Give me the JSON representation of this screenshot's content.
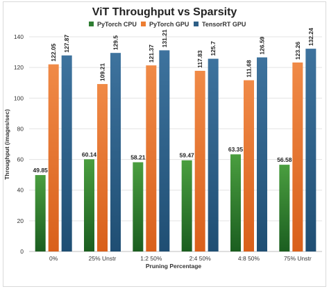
{
  "chart_data": {
    "type": "bar",
    "title": "ViT Throughput vs Sparsity",
    "xlabel": "Pruning Percentage",
    "ylabel": "Throughput (images/sec)",
    "ylim": [
      0,
      140
    ],
    "yticks": [
      0,
      20,
      40,
      60,
      80,
      100,
      120,
      140
    ],
    "grid": "horizontal",
    "legend_position": "top",
    "categories": [
      "0%",
      "25% Unstr",
      "1:2 50%",
      "2:4 50%",
      "4:8 50%",
      "75% Unstr"
    ],
    "series": [
      {
        "name": "PyTorch CPU",
        "color": "#2e7d32",
        "values": [
          49.85,
          60.14,
          58.21,
          59.47,
          63.35,
          56.58
        ],
        "labels": [
          "49.85",
          "60.14",
          "58.21",
          "59.47",
          "63.35",
          "56.58"
        ]
      },
      {
        "name": "PyTorch GPU",
        "color": "#ed7d31",
        "values": [
          122.05,
          109.21,
          121.37,
          117.83,
          111.68,
          123.26
        ],
        "labels": [
          "122.05",
          "109.21",
          "121.37",
          "117.83",
          "111.68",
          "123.26"
        ]
      },
      {
        "name": "TensorRT GPU",
        "color": "#2e5f86",
        "values": [
          127.87,
          129.5,
          131.21,
          125.7,
          126.59,
          132.24
        ],
        "labels": [
          "127.87",
          "129.5",
          "131.21",
          "125.7",
          "126.59",
          "132.24"
        ]
      }
    ]
  }
}
